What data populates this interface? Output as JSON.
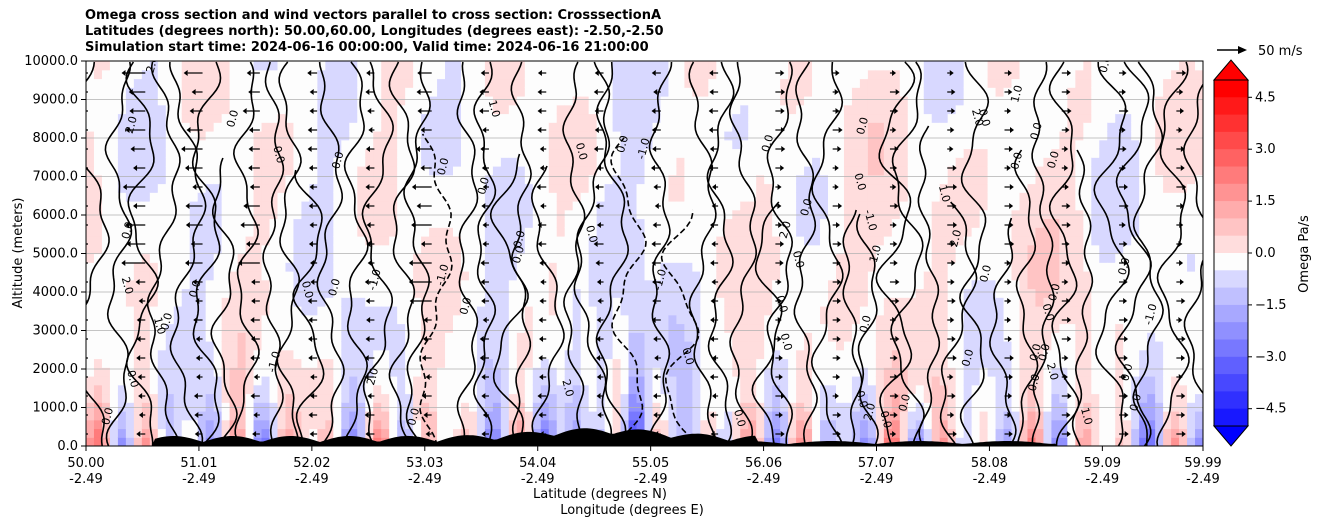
{
  "chart_data": {
    "type": "heatmap",
    "title": [
      "Omega cross section and wind vectors parallel to cross section: CrosssectionA",
      "Latitudes (degrees north): 50.00,60.00, Longitudes (degrees east): -2.50,-2.50",
      "Simulation start time: 2024-06-16 00:00:00, Valid time: 2024-06-16 21:00:00"
    ],
    "xlabel_lat": "Latitude (degrees N)",
    "xlabel_lon": "Longitude (degrees E)",
    "ylabel": "Altitude (meters)",
    "ylim": [
      0,
      10000
    ],
    "xlim": [
      50.0,
      59.99
    ],
    "y_ticks": [
      "0.0",
      "1000.0",
      "2000.0",
      "3000.0",
      "4000.0",
      "5000.0",
      "6000.0",
      "7000.0",
      "8000.0",
      "9000.0",
      "10000.0"
    ],
    "x_ticks": [
      {
        "lat": "50.00",
        "lon": "-2.49"
      },
      {
        "lat": "51.01",
        "lon": "-2.49"
      },
      {
        "lat": "52.02",
        "lon": "-2.49"
      },
      {
        "lat": "53.03",
        "lon": "-2.49"
      },
      {
        "lat": "54.04",
        "lon": "-2.49"
      },
      {
        "lat": "55.05",
        "lon": "-2.49"
      },
      {
        "lat": "56.06",
        "lon": "-2.49"
      },
      {
        "lat": "57.07",
        "lon": "-2.49"
      },
      {
        "lat": "58.08",
        "lon": "-2.49"
      },
      {
        "lat": "59.09",
        "lon": "-2.49"
      },
      {
        "lat": "59.99",
        "lon": "-2.49"
      }
    ],
    "colorbar": {
      "label": "Omega Pa/s",
      "range": [
        -5.0,
        5.0
      ],
      "ticks": [
        "4.5",
        "3.0",
        "1.5",
        "0.0",
        "−1.5",
        "−3.0",
        "−4.5"
      ],
      "extend": "both",
      "low_color": "#0000ff",
      "high_color": "#ff0000"
    },
    "quiver_key": {
      "label": "50 m/s",
      "value": 50
    },
    "contour_labels": [
      "0.0",
      "1.0",
      "-1.0",
      "2.0"
    ],
    "grid": "horizontal"
  }
}
